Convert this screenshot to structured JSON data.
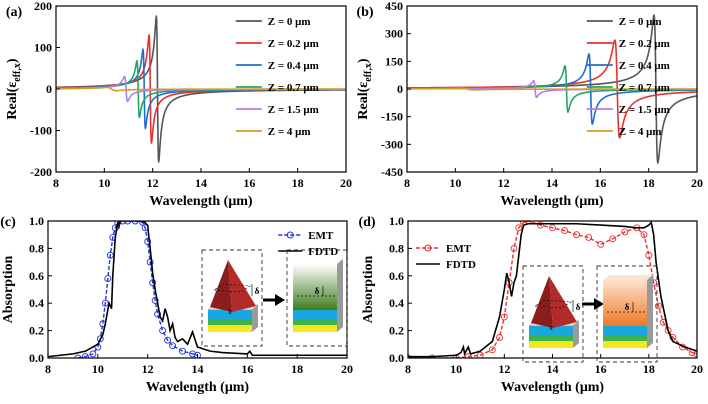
{
  "figure": {
    "panel_labels": [
      "(a)",
      "(b)",
      "(c)",
      "(d)"
    ],
    "inset_labels": {
      "delta": "δ",
      "x": "x"
    }
  },
  "chart_data": [
    {
      "id": "a",
      "type": "line",
      "title": "",
      "xlabel": "Wavelength (μm)",
      "ylabel": "Real(ε_eff,x)",
      "xlim": [
        8,
        20
      ],
      "ylim": [
        -200,
        200
      ],
      "xticks": [
        8,
        10,
        12,
        14,
        16,
        18,
        20
      ],
      "yticks": [
        -200,
        -100,
        0,
        100,
        200
      ],
      "legend_position": "top-right",
      "series": [
        {
          "name": "Z = 0 μm",
          "color": "#555555",
          "res": 12.2,
          "amp": 175,
          "width": 0.05
        },
        {
          "name": "Z = 0.2 μm",
          "color": "#e8312f",
          "res": 11.9,
          "amp": 130,
          "width": 0.05
        },
        {
          "name": "Z = 0.4 μm",
          "color": "#1f6fd1",
          "res": 11.65,
          "amp": 95,
          "width": 0.05
        },
        {
          "name": "Z = 0.7 μm",
          "color": "#27a566",
          "res": 11.4,
          "amp": 68,
          "width": 0.05
        },
        {
          "name": "Z = 1.5 μm",
          "color": "#b57be8",
          "res": 10.9,
          "amp": 30,
          "width": 0.06
        },
        {
          "name": "Z = 4 μm",
          "color": "#d29d22",
          "res": 10.3,
          "amp": 4,
          "width": 0.2
        }
      ]
    },
    {
      "id": "b",
      "type": "line",
      "title": "",
      "xlabel": "Wavelength (μm)",
      "ylabel": "Real(ε_eff,x)",
      "xlim": [
        8,
        20
      ],
      "ylim": [
        -450,
        450
      ],
      "xticks": [
        8,
        10,
        12,
        14,
        16,
        18,
        20
      ],
      "yticks": [
        -450,
        -300,
        -150,
        0,
        150,
        300,
        450
      ],
      "legend_position": "top-right",
      "series": [
        {
          "name": "Z = 0 μm",
          "color": "#555555",
          "res": 18.3,
          "amp": 400,
          "width": 0.08
        },
        {
          "name": "Z = 0.2 μm",
          "color": "#e8312f",
          "res": 16.7,
          "amp": 265,
          "width": 0.1
        },
        {
          "name": "Z = 0.4 μm",
          "color": "#1f6fd1",
          "res": 15.6,
          "amp": 190,
          "width": 0.07
        },
        {
          "name": "Z = 0.7 μm",
          "color": "#27a566",
          "res": 14.6,
          "amp": 125,
          "width": 0.06
        },
        {
          "name": "Z = 1.5 μm",
          "color": "#b57be8",
          "res": 13.3,
          "amp": 45,
          "width": 0.06
        },
        {
          "name": "Z = 4 μm",
          "color": "#d29d22",
          "res": 10.5,
          "amp": 5,
          "width": 0.3
        }
      ]
    },
    {
      "id": "c",
      "type": "line",
      "title": "",
      "xlabel": "Wavelength (μm)",
      "ylabel": "Absorption",
      "xlim": [
        8,
        20
      ],
      "ylim": [
        0,
        1.0
      ],
      "xticks": [
        8,
        10,
        12,
        14,
        16,
        18,
        20
      ],
      "yticks": [
        0,
        0.2,
        0.4,
        0.6,
        0.8,
        1.0
      ],
      "legend_position": "top-right",
      "series": [
        {
          "name": "EMT",
          "color": "#2233dd",
          "style": "dashed-circle",
          "x": [
            9.2,
            9.5,
            9.8,
            10.0,
            10.1,
            10.2,
            10.3,
            10.4,
            10.5,
            10.6,
            10.7,
            10.8,
            11.0,
            11.2,
            11.5,
            11.8,
            11.9,
            12.0,
            12.1,
            12.2,
            12.3,
            12.4,
            12.6,
            12.8,
            13.0,
            13.4,
            13.8,
            14.0
          ],
          "y": [
            0.0,
            0.01,
            0.03,
            0.08,
            0.14,
            0.25,
            0.4,
            0.58,
            0.75,
            0.88,
            0.95,
            0.99,
            1.0,
            1.0,
            1.0,
            0.99,
            0.95,
            0.85,
            0.7,
            0.55,
            0.42,
            0.32,
            0.2,
            0.13,
            0.09,
            0.05,
            0.03,
            0.02
          ]
        },
        {
          "name": "FDTD",
          "color": "#000000",
          "style": "solid",
          "x": [
            8.0,
            9.0,
            9.5,
            10.0,
            10.2,
            10.3,
            10.45,
            10.55,
            10.6,
            10.7,
            10.8,
            10.85,
            10.9,
            11.0,
            11.5,
            11.8,
            12.0,
            12.05,
            12.1,
            12.2,
            12.3,
            12.4,
            12.5,
            12.6,
            12.7,
            12.8,
            12.9,
            13.0,
            13.1,
            13.2,
            13.4,
            13.6,
            13.8,
            14.0,
            14.5,
            15.0,
            16.0,
            16.1,
            16.2,
            17.0,
            18.0,
            19.0,
            20.0
          ],
          "y": [
            0.01,
            0.03,
            0.05,
            0.1,
            0.17,
            0.25,
            0.4,
            0.36,
            0.6,
            0.88,
            0.99,
            0.96,
            1.0,
            1.0,
            1.0,
            1.0,
            0.97,
            0.88,
            0.8,
            0.62,
            0.5,
            0.4,
            0.3,
            0.27,
            0.36,
            0.3,
            0.2,
            0.25,
            0.15,
            0.12,
            0.14,
            0.1,
            0.19,
            0.08,
            0.05,
            0.04,
            0.03,
            0.05,
            0.02,
            0.02,
            0.02,
            0.02,
            0.02
          ]
        }
      ]
    },
    {
      "id": "d",
      "type": "line",
      "title": "",
      "xlabel": "Wavelength (μm)",
      "ylabel": "Absorption",
      "xlim": [
        8,
        20
      ],
      "ylim": [
        0,
        1.0
      ],
      "xticks": [
        8,
        10,
        12,
        14,
        16,
        18,
        20
      ],
      "yticks": [
        0,
        0.2,
        0.4,
        0.6,
        0.8,
        1.0
      ],
      "legend_position": "top-left",
      "series": [
        {
          "name": "EMT",
          "color": "#e8312f",
          "style": "dashed-circle",
          "x": [
            8.0,
            9.0,
            10.0,
            10.5,
            11.0,
            11.5,
            11.8,
            12.0,
            12.2,
            12.4,
            12.6,
            12.8,
            13.0,
            13.5,
            14.0,
            14.5,
            15.0,
            15.5,
            16.0,
            16.5,
            17.0,
            17.5,
            17.8,
            18.0,
            18.2,
            18.4,
            18.6,
            18.8,
            19.0,
            19.4,
            19.8,
            20.0
          ],
          "y": [
            0.0,
            0.0,
            0.0,
            0.01,
            0.02,
            0.06,
            0.15,
            0.3,
            0.55,
            0.8,
            0.95,
            0.99,
            1.0,
            0.97,
            0.95,
            0.93,
            0.9,
            0.88,
            0.83,
            0.87,
            0.92,
            0.95,
            0.9,
            0.75,
            0.55,
            0.38,
            0.26,
            0.2,
            0.15,
            0.08,
            0.04,
            0.03
          ]
        },
        {
          "name": "FDTD",
          "color": "#000000",
          "style": "solid",
          "x": [
            8.0,
            9.0,
            10.0,
            10.2,
            10.3,
            10.35,
            10.5,
            10.6,
            11.0,
            11.5,
            11.8,
            12.0,
            12.1,
            12.2,
            12.3,
            12.4,
            12.5,
            12.6,
            12.7,
            12.8,
            13.0,
            14.0,
            15.0,
            16.0,
            17.0,
            17.5,
            17.8,
            18.0,
            18.1,
            18.2,
            18.3,
            18.5,
            18.8,
            19.0,
            19.5,
            20.0
          ],
          "y": [
            0.01,
            0.01,
            0.02,
            0.04,
            0.08,
            0.03,
            0.08,
            0.03,
            0.05,
            0.12,
            0.3,
            0.5,
            0.62,
            0.55,
            0.45,
            0.55,
            0.6,
            0.75,
            0.9,
            0.97,
            0.98,
            0.98,
            0.98,
            0.97,
            0.96,
            0.95,
            0.95,
            0.97,
            0.99,
            0.9,
            0.7,
            0.45,
            0.2,
            0.12,
            0.08,
            0.05
          ]
        }
      ]
    }
  ]
}
